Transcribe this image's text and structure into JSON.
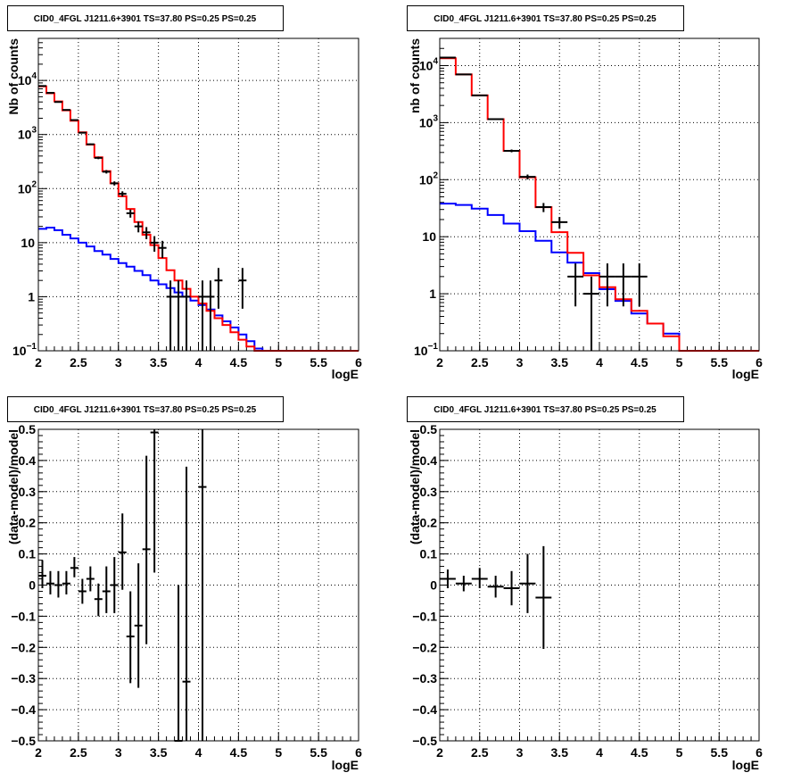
{
  "chart_data": [
    {
      "type": "line",
      "title": "CID0_4FGL J1211.6+3901 TS=37.80 PS=0.25 PS=0.25",
      "xlabel": "logE",
      "ylabel": "Nb of counts",
      "xlim": [
        2,
        6
      ],
      "ylim": [
        0.1,
        60000
      ],
      "yscale": "log",
      "grid": true,
      "x_ticks": [
        "2",
        "2.5",
        "3",
        "3.5",
        "4",
        "4.5",
        "5",
        "5.5",
        "6"
      ],
      "y_ticks": [
        {
          "base": "10",
          "exp": "4",
          "value": 10000
        },
        {
          "base": "10",
          "exp": "3",
          "value": 1000
        },
        {
          "base": "10",
          "exp": "2",
          "value": 100
        },
        {
          "base": "10",
          "exp": "",
          "value": 10
        },
        {
          "base": "1",
          "exp": "",
          "value": 1
        },
        {
          "base": "10",
          "exp": "−1",
          "value": 0.1
        }
      ],
      "bin_edges": [
        2.0,
        2.1,
        2.2,
        2.3,
        2.4,
        2.5,
        2.6,
        2.7,
        2.8,
        2.9,
        3.0,
        3.1,
        3.2,
        3.3,
        3.4,
        3.5,
        3.6,
        3.7,
        3.8,
        3.9,
        4.0,
        4.1,
        4.2,
        4.3,
        4.4,
        4.5,
        4.6,
        4.7,
        4.8,
        4.9,
        5.0,
        5.1,
        5.2,
        5.3,
        5.4,
        5.5,
        5.6,
        5.7,
        5.8,
        5.9,
        6.0
      ],
      "series": [
        {
          "role": "total model",
          "color": "#ff0000",
          "values": [
            7800,
            5800,
            4100,
            2800,
            1800,
            1100,
            650,
            380,
            210,
            125,
            72,
            42,
            24,
            14,
            9,
            5.2,
            3.1,
            2.0,
            1.4,
            1.0,
            0.75,
            0.55,
            0.4,
            0.3,
            0.22,
            0.16,
            0.12,
            0.1,
            0.1,
            0.1,
            0.1,
            0.1,
            0.1,
            0.1,
            0.1,
            0.1,
            0.1,
            0.1,
            0.1,
            0.1
          ]
        },
        {
          "role": "source model",
          "color": "#0000ff",
          "values": [
            18,
            19,
            17,
            14,
            12,
            10,
            8.5,
            7,
            6,
            5,
            4.2,
            3.6,
            3.0,
            2.5,
            2.0,
            1.7,
            1.45,
            1.2,
            1.0,
            0.85,
            0.7,
            0.58,
            0.45,
            0.35,
            0.27,
            0.2,
            0.15,
            0.11,
            0.1,
            0.1,
            0.1,
            0.1,
            0.1,
            0.1,
            0.1,
            0.1,
            0.1,
            0.1,
            0.1,
            0.1
          ]
        },
        {
          "role": "data",
          "color": "#000000",
          "points": [
            {
              "x": 2.05,
              "y": 7900,
              "lo": 7800,
              "hi": 8000
            },
            {
              "x": 2.15,
              "y": 5900,
              "lo": 5800,
              "hi": 6000
            },
            {
              "x": 2.25,
              "y": 4000,
              "lo": 3940,
              "hi": 4060
            },
            {
              "x": 2.35,
              "y": 2850,
              "lo": 2800,
              "hi": 2900
            },
            {
              "x": 2.45,
              "y": 1850,
              "lo": 1810,
              "hi": 1890
            },
            {
              "x": 2.55,
              "y": 1080,
              "lo": 1050,
              "hi": 1110
            },
            {
              "x": 2.65,
              "y": 660,
              "lo": 640,
              "hi": 680
            },
            {
              "x": 2.75,
              "y": 370,
              "lo": 350,
              "hi": 390
            },
            {
              "x": 2.85,
              "y": 205,
              "lo": 190,
              "hi": 220
            },
            {
              "x": 2.95,
              "y": 125,
              "lo": 114,
              "hi": 136
            },
            {
              "x": 3.05,
              "y": 80,
              "lo": 71,
              "hi": 89
            },
            {
              "x": 3.15,
              "y": 35,
              "lo": 29,
              "hi": 41
            },
            {
              "x": 3.25,
              "y": 20,
              "lo": 15.5,
              "hi": 24.5
            },
            {
              "x": 3.35,
              "y": 15.5,
              "lo": 11.6,
              "hi": 19.4
            },
            {
              "x": 3.45,
              "y": 10,
              "lo": 6.8,
              "hi": 13.2
            },
            {
              "x": 3.55,
              "y": 8,
              "lo": 5.2,
              "hi": 10.8
            },
            {
              "x": 3.65,
              "y": 1,
              "lo": 0.1,
              "hi": 2.0
            },
            {
              "x": 3.75,
              "y": 1,
              "lo": 0.1,
              "hi": 2.0
            },
            {
              "x": 3.85,
              "y": 1,
              "lo": 0.1,
              "hi": 2.0
            },
            {
              "x": 4.05,
              "y": 1,
              "lo": 0.1,
              "hi": 2.0
            },
            {
              "x": 4.15,
              "y": 1,
              "lo": 0.1,
              "hi": 2.0
            },
            {
              "x": 4.25,
              "y": 2,
              "lo": 0.6,
              "hi": 3.4
            },
            {
              "x": 4.55,
              "y": 2,
              "lo": 0.6,
              "hi": 3.4
            }
          ]
        }
      ]
    },
    {
      "type": "line",
      "title": "CID0_4FGL J1211.6+3901 TS=37.80 PS=0.25 PS=0.25",
      "xlabel": "logE",
      "ylabel": "nb of counts",
      "xlim": [
        2,
        6
      ],
      "ylim": [
        0.1,
        30000
      ],
      "yscale": "log",
      "grid": true,
      "x_ticks": [
        "2",
        "2.5",
        "3",
        "3.5",
        "4",
        "4.5",
        "5",
        "5.5",
        "6"
      ],
      "y_ticks": [
        {
          "base": "10",
          "exp": "4",
          "value": 10000
        },
        {
          "base": "10",
          "exp": "3",
          "value": 1000
        },
        {
          "base": "10",
          "exp": "2",
          "value": 100
        },
        {
          "base": "10",
          "exp": "",
          "value": 10
        },
        {
          "base": "1",
          "exp": "",
          "value": 1
        },
        {
          "base": "10",
          "exp": "−1",
          "value": 0.1
        }
      ],
      "bin_edges": [
        2.0,
        2.2,
        2.4,
        2.6,
        2.8,
        3.0,
        3.2,
        3.4,
        3.6,
        3.8,
        4.0,
        4.2,
        4.4,
        4.6,
        4.8,
        5.0,
        5.2,
        5.4,
        5.6,
        5.8,
        6.0
      ],
      "series": [
        {
          "role": "total model",
          "color": "#ff0000",
          "values": [
            13500,
            7000,
            3000,
            1150,
            320,
            110,
            33,
            12,
            5.2,
            2.1,
            1.3,
            0.8,
            0.5,
            0.3,
            0.18,
            0.1,
            0.1,
            0.1,
            0.1,
            0.1
          ]
        },
        {
          "role": "source model",
          "color": "#0000ff",
          "values": [
            38,
            36,
            31,
            24,
            17,
            12.5,
            8.5,
            5.3,
            3.5,
            2.3,
            1.2,
            0.75,
            0.45,
            0.3,
            0.2,
            0.1,
            0.1,
            0.1,
            0.1,
            0.1
          ]
        },
        {
          "role": "data",
          "color": "#000000",
          "points": [
            {
              "x": 2.1,
              "y": 13800,
              "lo": 13680,
              "hi": 13920
            },
            {
              "x": 2.3,
              "y": 7000,
              "lo": 6920,
              "hi": 7080
            },
            {
              "x": 2.5,
              "y": 3000,
              "lo": 2950,
              "hi": 3050
            },
            {
              "x": 2.7,
              "y": 1150,
              "lo": 1120,
              "hi": 1180
            },
            {
              "x": 2.9,
              "y": 320,
              "lo": 302,
              "hi": 338
            },
            {
              "x": 3.1,
              "y": 112,
              "lo": 101,
              "hi": 123
            },
            {
              "x": 3.3,
              "y": 33,
              "lo": 27,
              "hi": 39
            },
            {
              "x": 3.5,
              "y": 18,
              "lo": 13.8,
              "hi": 22.2
            },
            {
              "x": 3.7,
              "y": 2,
              "lo": 0.6,
              "hi": 3.4
            },
            {
              "x": 3.9,
              "y": 1,
              "lo": 0.1,
              "hi": 2.0
            },
            {
              "x": 4.1,
              "y": 2,
              "lo": 0.6,
              "hi": 3.4
            },
            {
              "x": 4.3,
              "y": 2,
              "lo": 0.6,
              "hi": 3.4
            },
            {
              "x": 4.5,
              "y": 2,
              "lo": 0.6,
              "hi": 3.4
            }
          ]
        }
      ]
    },
    {
      "type": "scatter",
      "title": "CID0_4FGL J1211.6+3901 TS=37.80 PS=0.25 PS=0.25",
      "xlabel": "logE",
      "ylabel": "(data-model)/model",
      "xlim": [
        2,
        6
      ],
      "ylim": [
        -0.5,
        0.5
      ],
      "yscale": "linear",
      "grid": true,
      "x_ticks": [
        "2",
        "2.5",
        "3",
        "3.5",
        "4",
        "4.5",
        "5",
        "5.5",
        "6"
      ],
      "y_ticks": [
        "0.5",
        "0.4",
        "0.3",
        "0.2",
        "0.1",
        "0",
        "−0.1",
        "−0.2",
        "−0.3",
        "−0.4",
        "−0.5"
      ],
      "xerr": 0.05,
      "points": [
        {
          "x": 2.05,
          "y": 0.03,
          "lo": -0.01,
          "hi": 0.08
        },
        {
          "x": 2.15,
          "y": 0.005,
          "lo": -0.03,
          "hi": 0.045
        },
        {
          "x": 2.25,
          "y": 0.0,
          "lo": -0.04,
          "hi": 0.045
        },
        {
          "x": 2.35,
          "y": 0.005,
          "lo": -0.03,
          "hi": 0.045
        },
        {
          "x": 2.45,
          "y": 0.055,
          "lo": 0.025,
          "hi": 0.09
        },
        {
          "x": 2.55,
          "y": -0.02,
          "lo": -0.06,
          "hi": 0.02
        },
        {
          "x": 2.65,
          "y": 0.02,
          "lo": -0.02,
          "hi": 0.06
        },
        {
          "x": 2.75,
          "y": -0.045,
          "lo": -0.1,
          "hi": 0.005
        },
        {
          "x": 2.85,
          "y": -0.02,
          "lo": -0.09,
          "hi": 0.06
        },
        {
          "x": 2.95,
          "y": 0.0,
          "lo": -0.09,
          "hi": 0.09
        },
        {
          "x": 3.05,
          "y": 0.105,
          "lo": -0.015,
          "hi": 0.23
        },
        {
          "x": 3.15,
          "y": -0.165,
          "lo": -0.315,
          "hi": -0.02
        },
        {
          "x": 3.25,
          "y": -0.13,
          "lo": -0.33,
          "hi": 0.07
        },
        {
          "x": 3.35,
          "y": 0.115,
          "lo": -0.19,
          "hi": 0.415
        },
        {
          "x": 3.45,
          "y": 0.49,
          "lo": 0.04,
          "hi": 0.5
        },
        {
          "x": 3.75,
          "y": -0.5,
          "lo": -0.5,
          "hi": 0.0
        },
        {
          "x": 3.85,
          "y": -0.31,
          "lo": -0.5,
          "hi": 0.38
        },
        {
          "x": 4.05,
          "y": 0.315,
          "lo": -0.5,
          "hi": 0.5
        }
      ]
    },
    {
      "type": "scatter",
      "title": "CID0_4FGL J1211.6+3901 TS=37.80 PS=0.25 PS=0.25",
      "xlabel": "logE",
      "ylabel": "(data-model)/model",
      "xlim": [
        2,
        6
      ],
      "ylim": [
        -0.5,
        0.5
      ],
      "yscale": "linear",
      "grid": true,
      "x_ticks": [
        "2",
        "2.5",
        "3",
        "3.5",
        "4",
        "4.5",
        "5",
        "5.5",
        "6"
      ],
      "y_ticks": [
        "0.5",
        "0.4",
        "0.3",
        "0.2",
        "0.1",
        "0",
        "−0.1",
        "−0.2",
        "−0.3",
        "−0.4",
        "−0.5"
      ],
      "xerr": 0.1,
      "points": [
        {
          "x": 2.1,
          "y": 0.02,
          "lo": -0.01,
          "hi": 0.05
        },
        {
          "x": 2.3,
          "y": 0.005,
          "lo": -0.02,
          "hi": 0.03
        },
        {
          "x": 2.5,
          "y": 0.02,
          "lo": -0.01,
          "hi": 0.055
        },
        {
          "x": 2.7,
          "y": -0.005,
          "lo": -0.04,
          "hi": 0.03
        },
        {
          "x": 2.9,
          "y": -0.01,
          "lo": -0.065,
          "hi": 0.045
        },
        {
          "x": 3.1,
          "y": 0.005,
          "lo": -0.09,
          "hi": 0.1
        },
        {
          "x": 3.3,
          "y": -0.04,
          "lo": -0.205,
          "hi": 0.125
        }
      ]
    }
  ]
}
